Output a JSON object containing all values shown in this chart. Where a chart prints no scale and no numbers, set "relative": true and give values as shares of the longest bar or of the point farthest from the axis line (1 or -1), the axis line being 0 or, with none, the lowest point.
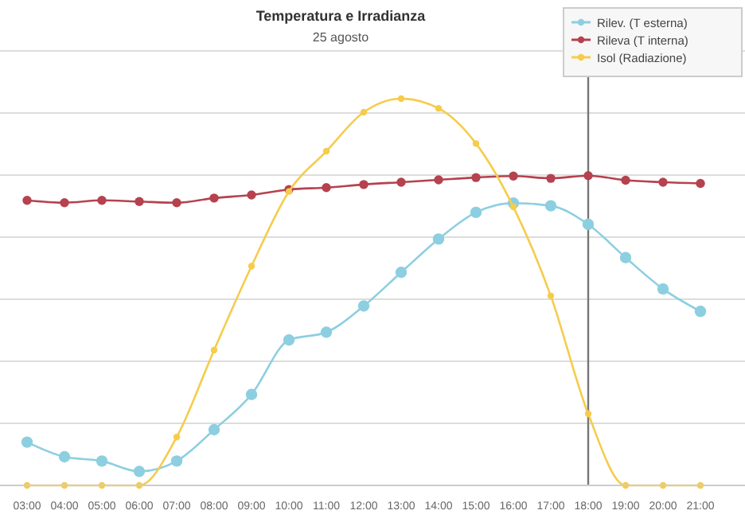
{
  "chart_data": {
    "type": "line",
    "title": "Temperatura e Irradianza",
    "subtitle": "25 agosto",
    "relative": true,
    "grid": "y",
    "legend": "top right",
    "marker": "circle",
    "line_style": "solid",
    "categories": [
      "03:00",
      "04:00",
      "05:00",
      "06:00",
      "07:00",
      "08:00",
      "09:00",
      "10:00",
      "11:00",
      "12:00",
      "13:00",
      "14:00",
      "15:00",
      "16:00",
      "17:00",
      "18:00",
      "19:00",
      "20:00",
      "21:00"
    ],
    "series": [
      {
        "name": "Rilev. (T esterna)",
        "color": "#8ccfe0",
        "values": [
          0.112,
          0.074,
          0.063,
          0.036,
          0.063,
          0.144,
          0.235,
          0.376,
          0.396,
          0.464,
          0.551,
          0.637,
          0.706,
          0.73,
          0.723,
          0.675,
          0.589,
          0.508,
          0.45
        ]
      },
      {
        "name": "Rileva (T interna)",
        "color": "#b5424e",
        "values": [
          0.737,
          0.731,
          0.737,
          0.734,
          0.731,
          0.743,
          0.751,
          0.765,
          0.77,
          0.778,
          0.784,
          0.79,
          0.796,
          0.8,
          0.794,
          0.801,
          0.789,
          0.784,
          0.781
        ]
      },
      {
        "name": "Isol (Radiazione)",
        "color": "#f5cc4c",
        "values": [
          0,
          0,
          0,
          0,
          0.125,
          0.35,
          0.567,
          0.76,
          0.864,
          0.965,
          1,
          0.975,
          0.884,
          0.72,
          0.49,
          0.185,
          0,
          0,
          0
        ]
      }
    ],
    "ref_lines": [
      {
        "axis": "x",
        "value": "18:00",
        "color": "#777777"
      }
    ]
  }
}
